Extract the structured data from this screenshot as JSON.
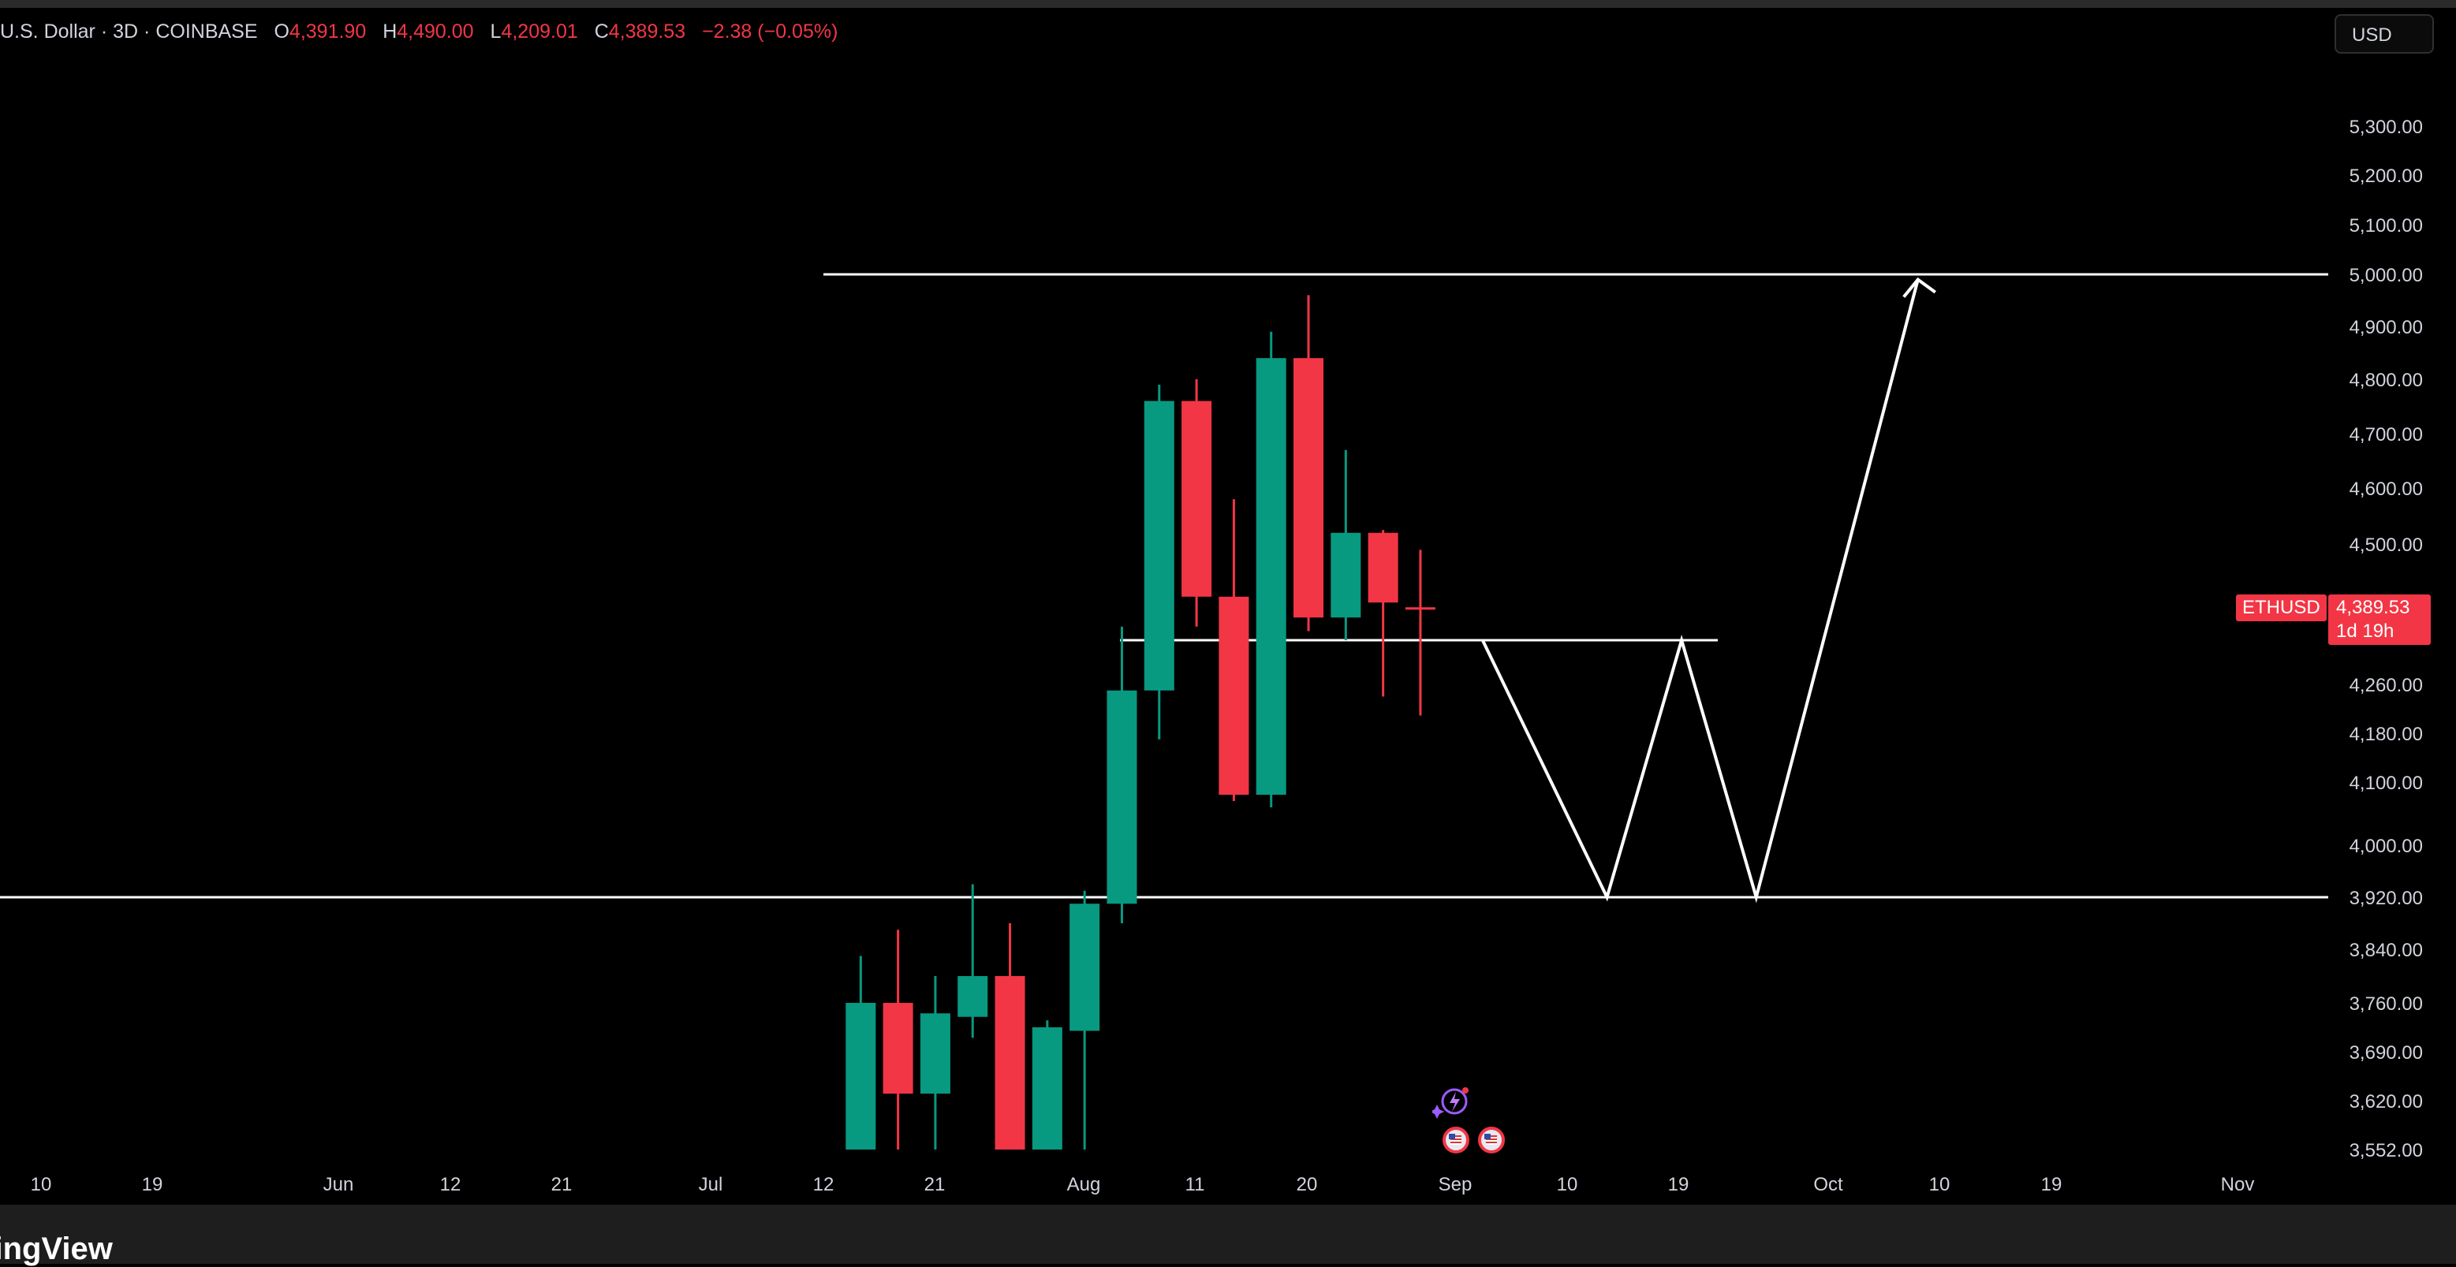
{
  "legend": {
    "symbol_name": "U.S. Dollar",
    "interval": "3D",
    "exchange": "COINBASE",
    "open_label": "O",
    "open": "4,391.90",
    "high_label": "H",
    "high": "4,490.00",
    "low_label": "L",
    "low": "4,209.01",
    "close_label": "C",
    "close": "4,389.53",
    "change": "−2.38 (−0.05%)"
  },
  "currency_button": "USD",
  "price_tag": {
    "symbol": "ETHUSD",
    "price": "4,389.53",
    "countdown": "1d 19h"
  },
  "brand": "TradingView",
  "colors": {
    "up": "#089981",
    "down": "#f23645",
    "drawing": "#ffffff",
    "background": "#000000"
  },
  "chart_data": {
    "type": "candlestick",
    "y_axis_ticks": [
      "5,300.00",
      "5,200.00",
      "5,100.00",
      "5,000.00",
      "4,900.00",
      "4,800.00",
      "4,700.00",
      "4,600.00",
      "4,500.00",
      "4,260.00",
      "4,180.00",
      "4,100.00",
      "4,000.00",
      "3,920.00",
      "3,840.00",
      "3,760.00",
      "3,690.00",
      "3,620.00",
      "3,552.00"
    ],
    "x_axis_ticks": [
      "10",
      "19",
      "Jun",
      "12",
      "21",
      "Jul",
      "12",
      "21",
      "Aug",
      "11",
      "20",
      "Sep",
      "10",
      "19",
      "Oct",
      "10",
      "19",
      "Nov"
    ],
    "candles": [
      {
        "date": "2025-07-15",
        "open": 3552,
        "high": 3830,
        "low": 3552,
        "close": 3760
      },
      {
        "date": "2025-07-18",
        "open": 3760,
        "high": 3870,
        "low": 3552,
        "close": 3630
      },
      {
        "date": "2025-07-21",
        "open": 3630,
        "high": 3800,
        "low": 3552,
        "close": 3745
      },
      {
        "date": "2025-07-24",
        "open": 3740,
        "high": 3940,
        "low": 3710,
        "close": 3800
      },
      {
        "date": "2025-07-27",
        "open": 3800,
        "high": 3880,
        "low": 3552,
        "close": 3552
      },
      {
        "date": "2025-07-30",
        "open": 3552,
        "high": 3735,
        "low": 3552,
        "close": 3725
      },
      {
        "date": "2025-08-02",
        "open": 3720,
        "high": 3930,
        "low": 3552,
        "close": 3910
      },
      {
        "date": "2025-08-05",
        "open": 3910,
        "high": 4350,
        "low": 3880,
        "close": 4250
      },
      {
        "date": "2025-08-08",
        "open": 4250,
        "high": 4790,
        "low": 4170,
        "close": 4760
      },
      {
        "date": "2025-08-11",
        "open": 4760,
        "high": 4800,
        "low": 4350,
        "close": 4410
      },
      {
        "date": "2025-08-14",
        "open": 4410,
        "high": 4580,
        "low": 4070,
        "close": 4080
      },
      {
        "date": "2025-08-17",
        "open": 4080,
        "high": 4890,
        "low": 4060,
        "close": 4840
      },
      {
        "date": "2025-08-20",
        "open": 4840,
        "high": 4960,
        "low": 4340,
        "close": 4370
      },
      {
        "date": "2025-08-23",
        "open": 4370,
        "high": 4670,
        "low": 4320,
        "close": 4520
      },
      {
        "date": "2025-08-26",
        "open": 4520,
        "high": 4525,
        "low": 4240,
        "close": 4400
      },
      {
        "date": "2025-08-29",
        "open": 4391.9,
        "high": 4490,
        "low": 4209.01,
        "close": 4389.53
      }
    ],
    "horizontal_lines": [
      5000,
      3920,
      4320
    ],
    "projection_path": [
      {
        "date": "2025-09-03",
        "price": 4320
      },
      {
        "date": "2025-09-13",
        "price": 3920
      },
      {
        "date": "2025-09-19",
        "price": 4320
      },
      {
        "date": "2025-09-25",
        "price": 3920
      },
      {
        "date": "2025-10-08",
        "price": 4990
      }
    ]
  }
}
